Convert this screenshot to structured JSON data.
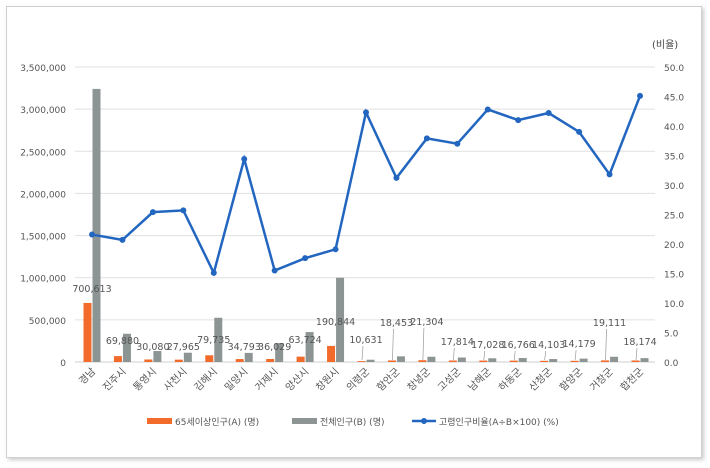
{
  "chart_data": {
    "type": "bar+line",
    "categories": [
      "경남",
      "진주시",
      "통영시",
      "사천시",
      "김해시",
      "밀양시",
      "거제시",
      "양산시",
      "창원시",
      "의령군",
      "함안군",
      "창녕군",
      "고성군",
      "남해군",
      "하동군",
      "산청군",
      "함양군",
      "거창군",
      "합천군"
    ],
    "series": [
      {
        "name": "65세이상인구(A) (명)",
        "type": "bar",
        "axis": "left",
        "color": "#f26b2b",
        "values": [
          700613,
          69880,
          30080,
          27965,
          79735,
          34793,
          36029,
          63724,
          190844,
          10631,
          18453,
          21304,
          17814,
          17028,
          16766,
          14103,
          14179,
          19111,
          18174
        ],
        "labels": [
          "700,613",
          "69,880",
          "30,080",
          "27,965",
          "79,735",
          "34,793",
          "36,029",
          "63,724",
          "190,844",
          "10,631",
          "18,453",
          "21,304",
          "17,814",
          "17,028",
          "16,766",
          "14,103",
          "14,179",
          "19,111",
          "18,174"
        ]
      },
      {
        "name": "전체인구(B) (명)",
        "type": "bar",
        "axis": "left",
        "color": "#8c9494",
        "values": [
          3240000,
          335000,
          130000,
          110000,
          525000,
          108000,
          225000,
          355000,
          1000000,
          27000,
          67000,
          62000,
          53000,
          44000,
          47000,
          35000,
          40000,
          62000,
          46000
        ]
      },
      {
        "name": "고령인구비율(A÷B×100) (%)",
        "type": "line",
        "axis": "right",
        "color": "#2266c0",
        "values": [
          21.6,
          20.7,
          25.4,
          25.7,
          15.1,
          34.4,
          15.5,
          17.6,
          19.1,
          42.3,
          31.2,
          37.9,
          37.0,
          42.8,
          41.0,
          42.2,
          39.0,
          31.8,
          45.1
        ]
      }
    ],
    "left_axis": {
      "ylim": [
        0,
        3500000
      ],
      "ticks": [
        "0",
        "500,000",
        "1,000,000",
        "1,500,000",
        "2,000,000",
        "2,500,000",
        "3,000,000",
        "3,500,000"
      ]
    },
    "right_axis": {
      "label": "(비율)",
      "ylim": [
        0,
        50
      ],
      "ticks": [
        "0.0",
        "5.0",
        "10.0",
        "15.0",
        "20.0",
        "25.0",
        "30.0",
        "35.0",
        "40.0",
        "45.0",
        "50.0"
      ]
    },
    "grid": true,
    "legend": "bottom"
  }
}
